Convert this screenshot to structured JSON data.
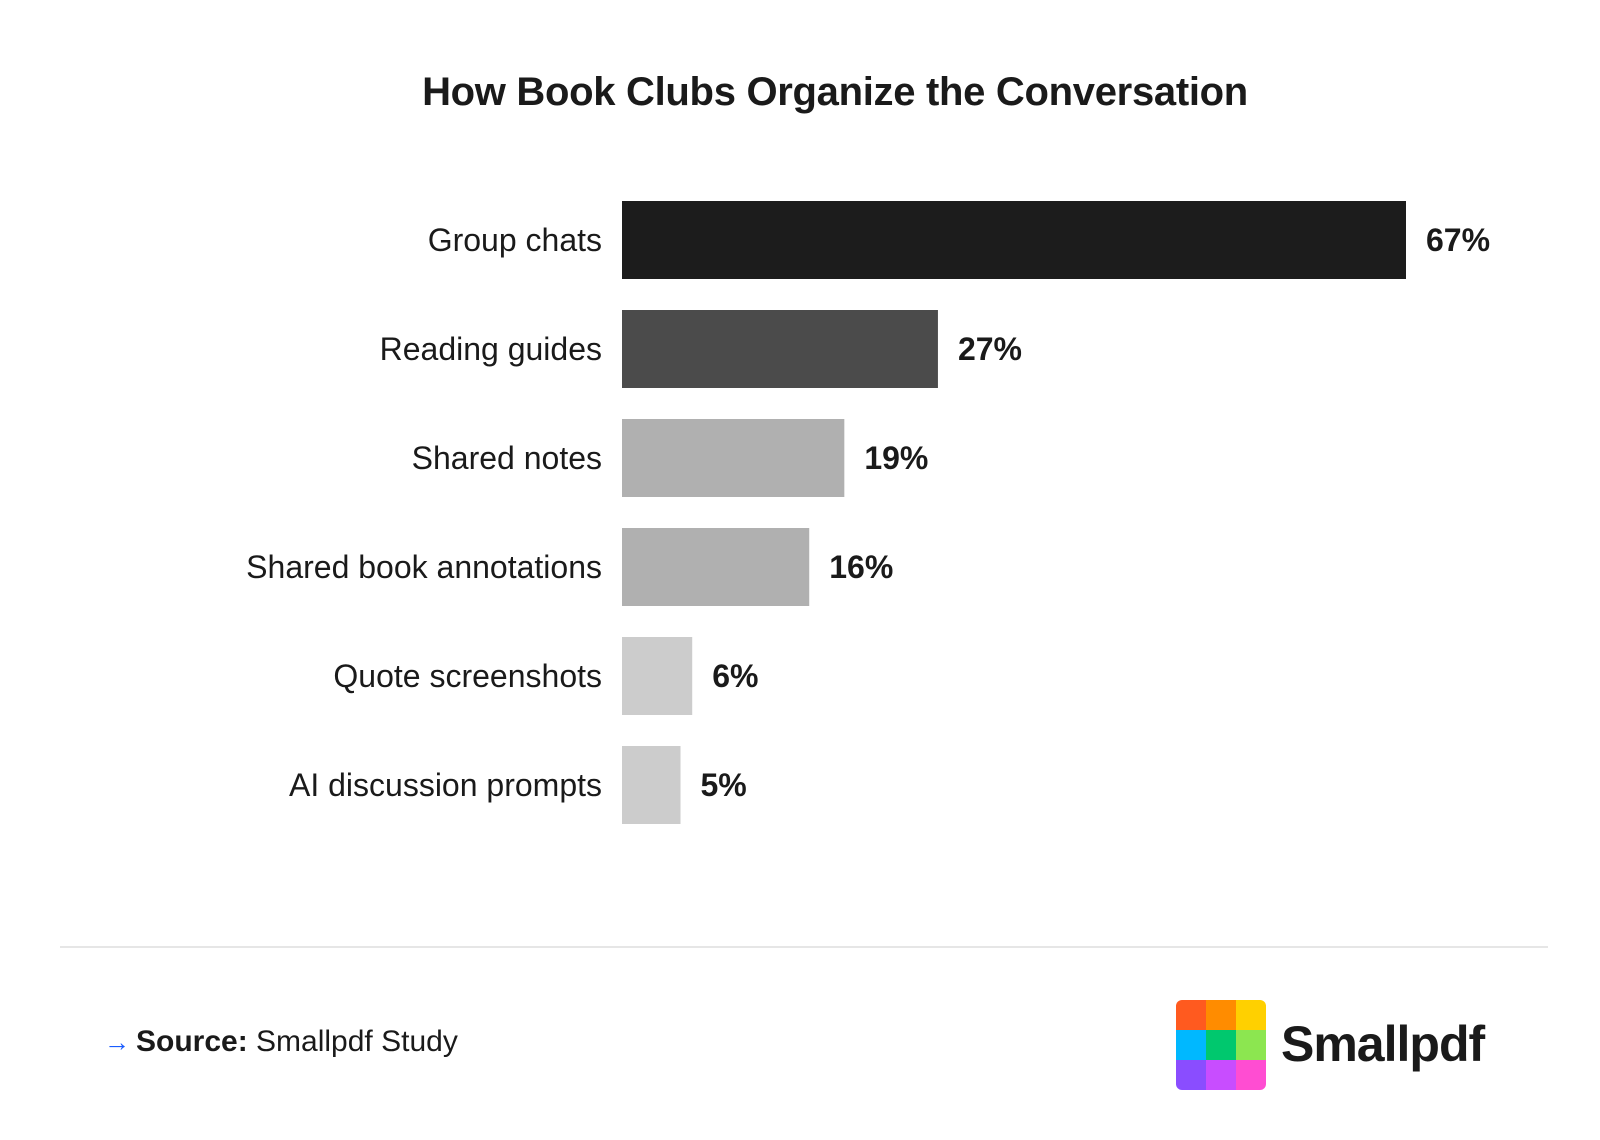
{
  "chart_data": {
    "type": "bar",
    "orientation": "horizontal",
    "title": "How Book Clubs Organize the Conversation",
    "categories": [
      "Group chats",
      "Reading guides",
      "Shared notes",
      "Shared book annotations",
      "Quote screenshots",
      "AI discussion prompts"
    ],
    "values": [
      67,
      27,
      19,
      16,
      6,
      5
    ],
    "value_labels": [
      "67%",
      "27%",
      "19%",
      "16%",
      "6%",
      "5%"
    ],
    "bar_colors": [
      "#1c1c1c",
      "#4b4b4b",
      "#b0b0b0",
      "#b0b0b0",
      "#cccccc",
      "#cccccc"
    ],
    "xlim": [
      0,
      67
    ],
    "grid": false,
    "legend": "none"
  },
  "footer": {
    "source_label": "Source:",
    "source_text": "Smallpdf Study",
    "arrow_icon": "arrow-right-icon",
    "arrow_color": "#1a5cff"
  },
  "brand": {
    "name": "Smallpdf",
    "logo_icon": "smallpdf-logo-icon",
    "logo_colors": [
      "#ff5a1f",
      "#ff8c00",
      "#ffd000",
      "#00b8ff",
      "#00c86e",
      "#8ce650",
      "#8a4dff",
      "#c84dff",
      "#ff4dd2"
    ]
  }
}
